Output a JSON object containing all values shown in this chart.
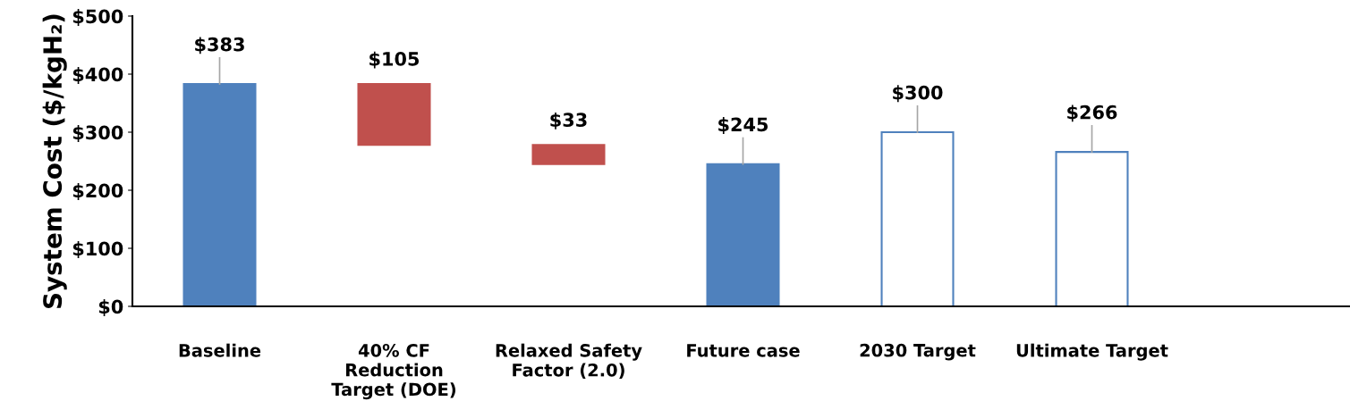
{
  "chart_data": {
    "type": "bar",
    "ylabel": "System Cost ($/kgH₂)",
    "categories": [
      "Baseline",
      "40% CF\nReduction\nTarget (DOE)",
      "Relaxed Safety\nFactor (2.0)",
      "Future case",
      "2030 Target",
      "Ultimate Target"
    ],
    "values": [
      383,
      105,
      33,
      245,
      300,
      266
    ],
    "base": [
      0,
      278,
      245,
      0,
      0,
      0
    ],
    "colors": [
      "#4f81bd",
      "#c0504d",
      "#c0504d",
      "#4f81bd",
      "#ffffff",
      "#ffffff"
    ],
    "value_labels": [
      "$383",
      "$105",
      "$33",
      "$245",
      "$300",
      "$266"
    ],
    "ylim": [
      0,
      500
    ],
    "yticks": [
      {
        "value": 0,
        "label": "$0"
      },
      {
        "value": 100,
        "label": "$100"
      },
      {
        "value": 200,
        "label": "$200"
      },
      {
        "value": 300,
        "label": "$300"
      },
      {
        "value": 400,
        "label": "$400"
      },
      {
        "value": 500,
        "label": "$500"
      }
    ],
    "grid": false,
    "legend": false
  }
}
